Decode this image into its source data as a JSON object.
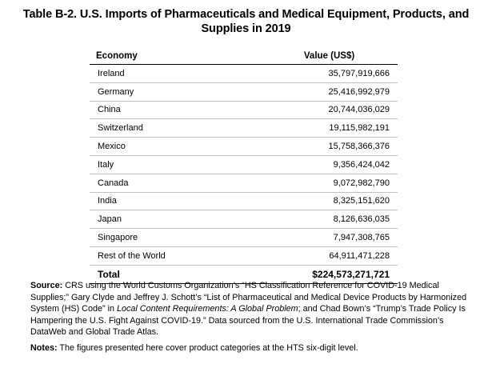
{
  "title": "Table B-2. U.S. Imports of Pharmaceuticals and Medical Equipment, Products, and Supplies in 2019",
  "table": {
    "headers": {
      "economy": "Economy",
      "value": "Value (US$)"
    },
    "rows": [
      {
        "economy": "Ireland",
        "value": "35,797,919,666"
      },
      {
        "economy": "Germany",
        "value": "25,416,992,979"
      },
      {
        "economy": "China",
        "value": "20,744,036,029"
      },
      {
        "economy": "Switzerland",
        "value": "19,115,982,191"
      },
      {
        "economy": "Mexico",
        "value": "15,758,366,376"
      },
      {
        "economy": "Italy",
        "value": "9,356,424,042"
      },
      {
        "economy": "Canada",
        "value": "9,072,982,790"
      },
      {
        "economy": "India",
        "value": "8,325,151,620"
      },
      {
        "economy": "Japan",
        "value": "8,126,636,035"
      },
      {
        "economy": "Singapore",
        "value": "7,947,308,765"
      },
      {
        "economy": "Rest of the World",
        "value": "64,911,471,228"
      }
    ],
    "total": {
      "label": "Total",
      "value": "$224,573,271,721"
    }
  },
  "source": {
    "label": "Source:",
    "text_1": " CRS using the World Customs Organization’s “HS Classification Reference for COVID-19 Medical Supplies;” Gary Clyde and Jeffrey J. Schott’s “List of Pharmaceutical and Medical Device Products by Harmonized System (HS) Code” in ",
    "italic": "Local Content Requirements: A Global Problem",
    "text_2": "; and Chad Bown’s “Trump’s Trade Policy Is Hampering the U.S. Fight Against COVID-19.” Data sourced from the U.S. International Trade Commission’s DataWeb and Global Trade Atlas."
  },
  "notes": {
    "label": "Notes:",
    "text": " The figures presented here cover product categories at the HTS six-digit level."
  }
}
